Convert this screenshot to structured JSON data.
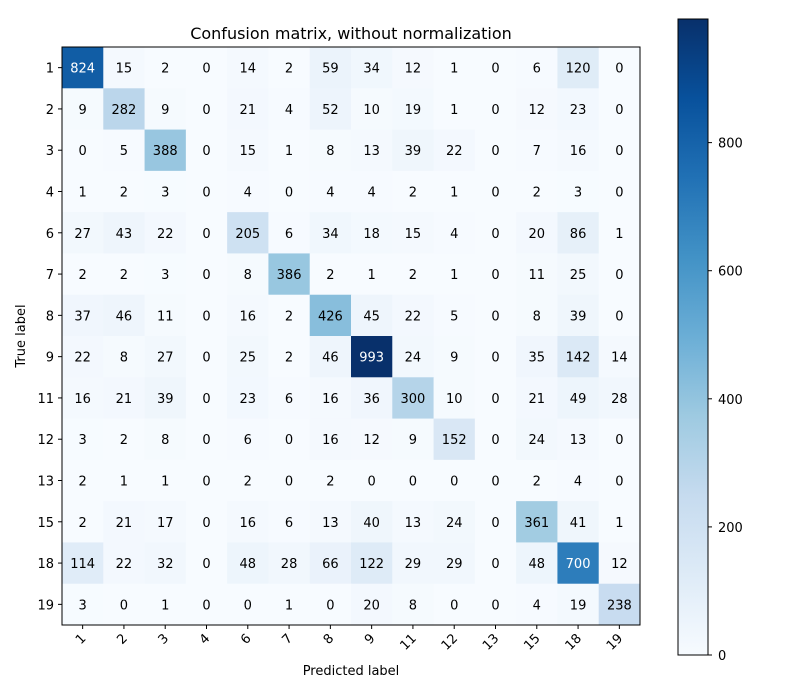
{
  "chart_data": {
    "type": "heatmap",
    "title": "Confusion matrix, without normalization",
    "xlabel": "Predicted label",
    "ylabel": "True label",
    "labels": [
      "1",
      "2",
      "3",
      "4",
      "6",
      "7",
      "8",
      "9",
      "11",
      "12",
      "13",
      "15",
      "18",
      "19"
    ],
    "matrix": [
      [
        824,
        15,
        2,
        0,
        14,
        2,
        59,
        34,
        12,
        1,
        0,
        6,
        120,
        0
      ],
      [
        9,
        282,
        9,
        0,
        21,
        4,
        52,
        10,
        19,
        1,
        0,
        12,
        23,
        0
      ],
      [
        0,
        5,
        388,
        0,
        15,
        1,
        8,
        13,
        39,
        22,
        0,
        7,
        16,
        0
      ],
      [
        1,
        2,
        3,
        0,
        4,
        0,
        4,
        4,
        2,
        1,
        0,
        2,
        3,
        0
      ],
      [
        27,
        43,
        22,
        0,
        205,
        6,
        34,
        18,
        15,
        4,
        0,
        20,
        86,
        1
      ],
      [
        2,
        2,
        3,
        0,
        8,
        386,
        2,
        1,
        2,
        1,
        0,
        11,
        25,
        0
      ],
      [
        37,
        46,
        11,
        0,
        16,
        2,
        426,
        45,
        22,
        5,
        0,
        8,
        39,
        0
      ],
      [
        22,
        8,
        27,
        0,
        25,
        2,
        46,
        993,
        24,
        9,
        0,
        35,
        142,
        14
      ],
      [
        16,
        21,
        39,
        0,
        23,
        6,
        16,
        36,
        300,
        10,
        0,
        21,
        49,
        28
      ],
      [
        3,
        2,
        8,
        0,
        6,
        0,
        16,
        12,
        9,
        152,
        0,
        24,
        13,
        0
      ],
      [
        2,
        1,
        1,
        0,
        2,
        0,
        2,
        0,
        0,
        0,
        0,
        2,
        4,
        0
      ],
      [
        2,
        21,
        17,
        0,
        16,
        6,
        13,
        40,
        13,
        24,
        0,
        361,
        41,
        1
      ],
      [
        114,
        22,
        32,
        0,
        48,
        28,
        66,
        122,
        29,
        29,
        0,
        48,
        700,
        12
      ],
      [
        3,
        0,
        1,
        0,
        0,
        1,
        0,
        20,
        8,
        0,
        0,
        4,
        19,
        238
      ]
    ],
    "colormap": "Blues",
    "vmin": 0,
    "vmax": 993,
    "colorbar_ticks": [
      0,
      200,
      400,
      600,
      800
    ]
  }
}
